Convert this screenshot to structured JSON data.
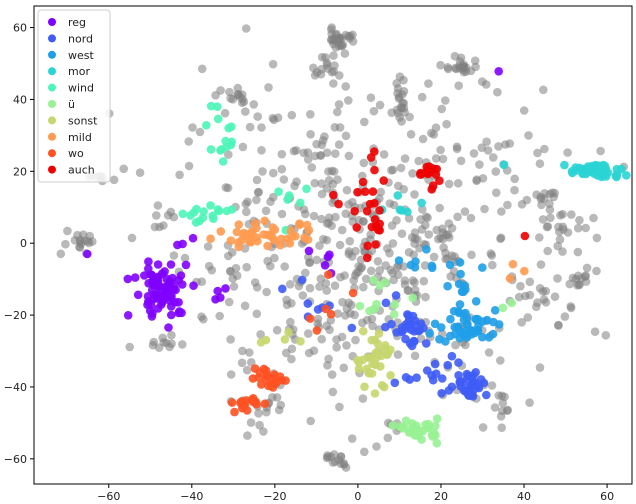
{
  "chart_data": {
    "type": "scatter",
    "title": "",
    "xlabel": "",
    "ylabel": "",
    "xlim": [
      -78,
      66
    ],
    "ylim": [
      -67,
      66
    ],
    "xticks": [
      -60,
      -40,
      -20,
      0,
      20,
      40,
      60
    ],
    "yticks": [
      -60,
      -40,
      -20,
      0,
      20,
      40,
      60
    ],
    "xtick_labels": [
      "−60",
      "−40",
      "−20",
      "0",
      "20",
      "40",
      "60"
    ],
    "ytick_labels": [
      "−60",
      "−40",
      "−20",
      "0",
      "20",
      "40",
      "60"
    ],
    "grid": false,
    "legend_position": "top-left",
    "background_points": {
      "color": "#808080",
      "alpha": 0.55,
      "clusters": [
        {
          "cx": 0,
          "cy": 0,
          "sx": 22,
          "sy": 22,
          "n": 520
        },
        {
          "cx": -4,
          "cy": 57,
          "sx": 1.6,
          "sy": 1.6,
          "n": 30
        },
        {
          "cx": -8,
          "cy": 48,
          "sx": 1.5,
          "sy": 2,
          "n": 14
        },
        {
          "cx": 11,
          "cy": 40,
          "sx": 1.2,
          "sy": 3,
          "n": 16
        },
        {
          "cx": 25,
          "cy": 49,
          "sx": 2.2,
          "sy": 1.4,
          "n": 20
        },
        {
          "cx": -30,
          "cy": 40,
          "sx": 2,
          "sy": 1.5,
          "n": 14
        },
        {
          "cx": -67,
          "cy": 0,
          "sx": 2,
          "sy": 1.2,
          "n": 16
        },
        {
          "cx": -62,
          "cy": 18,
          "sx": 2.5,
          "sy": 0.8,
          "n": 8
        },
        {
          "cx": -46,
          "cy": -28,
          "sx": 1.8,
          "sy": 0.6,
          "n": 8
        },
        {
          "cx": -6,
          "cy": -61,
          "sx": 1.5,
          "sy": 1.2,
          "n": 14
        },
        {
          "cx": 47,
          "cy": 5,
          "sx": 3,
          "sy": 3,
          "n": 20
        },
        {
          "cx": 43,
          "cy": -15,
          "sx": 5,
          "sy": 3,
          "n": 20
        },
        {
          "cx": 55,
          "cy": -10,
          "sx": 1.8,
          "sy": 1.5,
          "n": 10
        },
        {
          "cx": 44,
          "cy": 13,
          "sx": 2,
          "sy": 1.2,
          "n": 8
        },
        {
          "cx": -22,
          "cy": -45,
          "sx": 4,
          "sy": 3,
          "n": 14
        },
        {
          "cx": 35,
          "cy": -44,
          "sx": 3,
          "sy": 3,
          "n": 12
        },
        {
          "cx": -48,
          "cy": 6,
          "sx": 2,
          "sy": 2,
          "n": 6
        },
        {
          "cx": 10,
          "cy": -52,
          "sx": 1.5,
          "sy": 1.5,
          "n": 6
        },
        {
          "cx": 34,
          "cy": 24,
          "sx": 2,
          "sy": 3,
          "n": 10
        }
      ]
    },
    "series": [
      {
        "name": "reg",
        "color": "#7f00ff",
        "clusters": [
          {
            "cx": -47,
            "cy": -13,
            "sx": 3.5,
            "sy": 4,
            "n": 75
          },
          {
            "cx": -34,
            "cy": -14,
            "sx": 2,
            "sy": 2,
            "n": 4
          },
          {
            "cx": -40,
            "cy": 0,
            "sx": 2,
            "sy": 1,
            "n": 3
          },
          {
            "cx": -5,
            "cy": -5,
            "sx": 4,
            "sy": 3,
            "n": 5
          },
          {
            "cx": 34,
            "cy": 48,
            "sx": 0.3,
            "sy": 0.3,
            "n": 1
          },
          {
            "cx": -65,
            "cy": -3,
            "sx": 0.3,
            "sy": 0.3,
            "n": 1
          }
        ]
      },
      {
        "name": "nord",
        "color": "#3f5cf6",
        "clusters": [
          {
            "cx": 27,
            "cy": -39,
            "sx": 2,
            "sy": 1.8,
            "n": 35
          },
          {
            "cx": 12,
            "cy": -23,
            "sx": 2.5,
            "sy": 3,
            "n": 30
          },
          {
            "cx": 20,
            "cy": -35,
            "sx": 2,
            "sy": 2,
            "n": 10
          },
          {
            "cx": 12,
            "cy": -38,
            "sx": 2,
            "sy": 1,
            "n": 4
          },
          {
            "cx": -10,
            "cy": -18,
            "sx": 5,
            "sy": 5,
            "n": 8
          }
        ]
      },
      {
        "name": "west",
        "color": "#1f9fe8",
        "clusters": [
          {
            "cx": 27,
            "cy": -23,
            "sx": 4.5,
            "sy": 2.5,
            "n": 50
          },
          {
            "cx": 25,
            "cy": -12,
            "sx": 2,
            "sy": 3,
            "n": 10
          },
          {
            "cx": 18,
            "cy": -5,
            "sx": 3,
            "sy": 3,
            "n": 8
          }
        ]
      },
      {
        "name": "mor",
        "color": "#2ad4d4",
        "clusters": [
          {
            "cx": 57,
            "cy": 20,
            "sx": 3.5,
            "sy": 1.1,
            "n": 45
          },
          {
            "cx": 10,
            "cy": 10,
            "sx": 4,
            "sy": 4,
            "n": 6
          },
          {
            "cx": 36,
            "cy": 22,
            "sx": 0.5,
            "sy": 0.5,
            "n": 1
          }
        ]
      },
      {
        "name": "wind",
        "color": "#4cf5b8",
        "clusters": [
          {
            "cx": -35,
            "cy": 8,
            "sx": 3,
            "sy": 1.2,
            "n": 15
          },
          {
            "cx": -33,
            "cy": 28,
            "sx": 3.5,
            "sy": 2.5,
            "n": 12
          },
          {
            "cx": -15,
            "cy": 12,
            "sx": 3,
            "sy": 3,
            "n": 6
          },
          {
            "cx": -34,
            "cy": 38,
            "sx": 1,
            "sy": 0.5,
            "n": 2
          }
        ]
      },
      {
        "name": "ü",
        "color": "#98f294",
        "clusters": [
          {
            "cx": 15,
            "cy": -52,
            "sx": 2.2,
            "sy": 1.5,
            "n": 30
          },
          {
            "cx": 5,
            "cy": -15,
            "sx": 3,
            "sy": 3,
            "n": 10
          },
          {
            "cx": 36,
            "cy": -17,
            "sx": 1,
            "sy": 1,
            "n": 2
          }
        ]
      },
      {
        "name": "sonst",
        "color": "#c7d66e",
        "clusters": [
          {
            "cx": 4,
            "cy": -32,
            "sx": 2.5,
            "sy": 4,
            "n": 35
          },
          {
            "cx": -20,
            "cy": -28,
            "sx": 3,
            "sy": 2,
            "n": 5
          }
        ]
      },
      {
        "name": "mild",
        "color": "#ff9b50",
        "clusters": [
          {
            "cx": -22,
            "cy": 2,
            "sx": 6,
            "sy": 1.7,
            "n": 45
          },
          {
            "cx": 38,
            "cy": -10,
            "sx": 2,
            "sy": 2,
            "n": 3
          }
        ]
      },
      {
        "name": "wo",
        "color": "#ff5121",
        "clusters": [
          {
            "cx": -27,
            "cy": -45,
            "sx": 1.3,
            "sy": 1,
            "n": 20
          },
          {
            "cx": -22,
            "cy": -37,
            "sx": 2,
            "sy": 1.5,
            "n": 20
          },
          {
            "cx": -6,
            "cy": -20,
            "sx": 4,
            "sy": 4,
            "n": 6
          }
        ]
      },
      {
        "name": "auch",
        "color": "#ee0000",
        "clusters": [
          {
            "cx": 17,
            "cy": 19,
            "sx": 2,
            "sy": 2,
            "n": 15
          },
          {
            "cx": 3,
            "cy": 8,
            "sx": 3,
            "sy": 7,
            "n": 25
          },
          {
            "cx": 40,
            "cy": 2,
            "sx": 0.5,
            "sy": 0.5,
            "n": 1
          }
        ]
      }
    ]
  }
}
